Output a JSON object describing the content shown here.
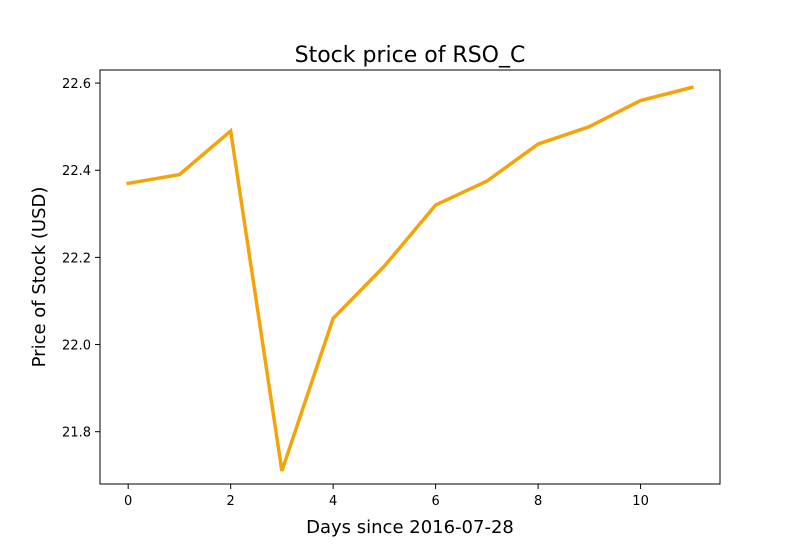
{
  "chart_data": {
    "type": "line",
    "title": "Stock price of RSO_C",
    "xlabel": "Days since 2016-07-28",
    "ylabel": "Price of Stock (USD)",
    "xlim": [
      -0.55,
      11.55
    ],
    "ylim": [
      21.68,
      22.63
    ],
    "x_ticks": [
      0,
      2,
      4,
      6,
      8,
      10
    ],
    "y_ticks": [
      21.8,
      22.0,
      22.2,
      22.4,
      22.6
    ],
    "grid": false,
    "legend": "none",
    "series": [
      {
        "color": "#f5a30a",
        "x": [
          0,
          1,
          2,
          3,
          4,
          5,
          6,
          7,
          8,
          9,
          10,
          11
        ],
        "y": [
          22.37,
          22.39,
          22.49,
          21.71,
          22.06,
          22.18,
          22.32,
          22.375,
          22.46,
          22.5,
          22.56,
          22.59
        ]
      }
    ]
  }
}
